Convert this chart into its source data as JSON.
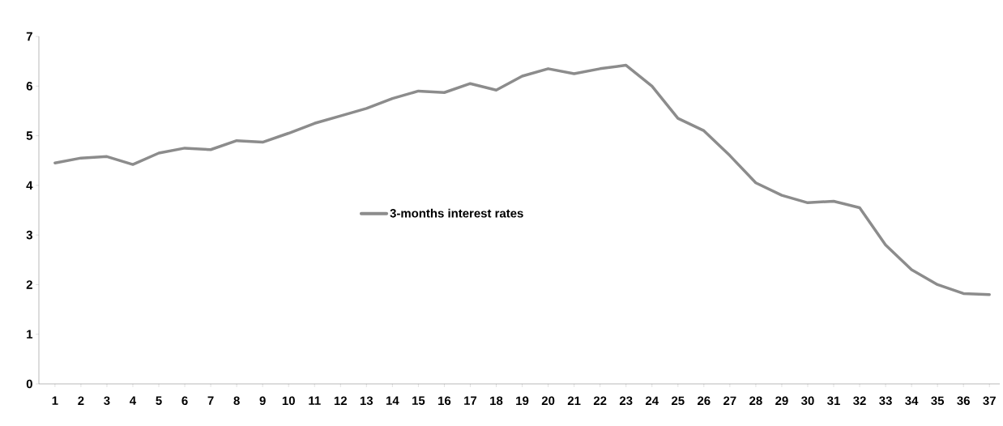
{
  "chart_data": {
    "type": "line",
    "categories": [
      "1",
      "2",
      "3",
      "4",
      "5",
      "6",
      "7",
      "8",
      "9",
      "10",
      "11",
      "12",
      "13",
      "14",
      "15",
      "16",
      "17",
      "18",
      "19",
      "20",
      "21",
      "22",
      "23",
      "24",
      "25",
      "26",
      "27",
      "28",
      "29",
      "30",
      "31",
      "32",
      "33",
      "34",
      "35",
      "36",
      "37"
    ],
    "series": [
      {
        "name": "3-months interest rates",
        "color": "#8c8c8c",
        "values": [
          4.45,
          4.55,
          4.58,
          4.42,
          4.65,
          4.75,
          4.72,
          4.9,
          4.87,
          5.05,
          5.25,
          5.4,
          5.55,
          5.75,
          5.9,
          5.87,
          6.05,
          5.92,
          6.2,
          6.35,
          6.25,
          6.35,
          6.42,
          6.0,
          5.35,
          5.1,
          4.6,
          4.05,
          3.8,
          3.65,
          3.68,
          3.55,
          2.8,
          2.3,
          2.0,
          1.82,
          1.8
        ]
      }
    ],
    "ylim": [
      0,
      7
    ],
    "yticks": [
      0,
      1,
      2,
      3,
      4,
      5,
      6,
      7
    ],
    "grid": false,
    "legend": "center",
    "marker": "none",
    "line_style": "solid"
  }
}
